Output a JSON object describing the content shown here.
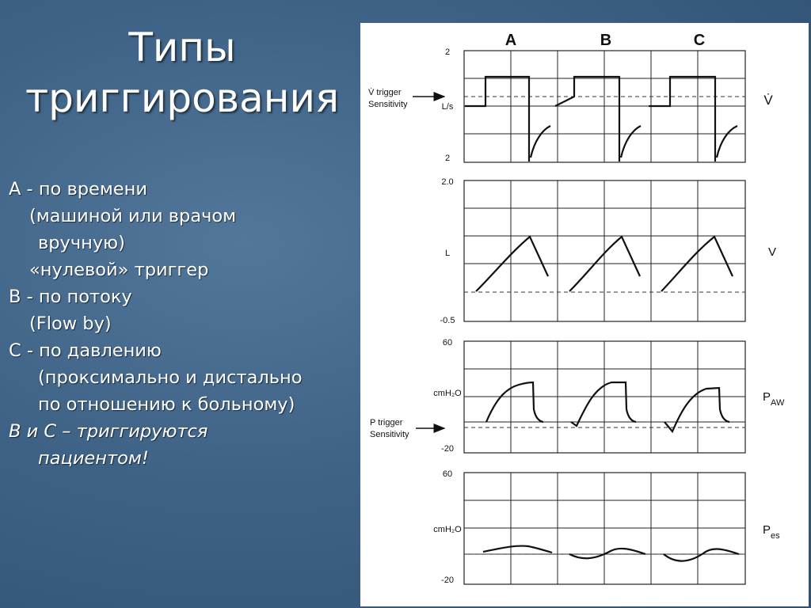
{
  "slide": {
    "title_line1": "Типы",
    "title_line2": "триггирования",
    "bullets": [
      {
        "text": "А - по времени",
        "indent": 0,
        "italic": false
      },
      {
        "text": "(машиной или врачом",
        "indent": 1,
        "italic": false
      },
      {
        "text": "вручную)",
        "indent": 2,
        "italic": false
      },
      {
        "text": "«нулевой» триггер",
        "indent": 1,
        "italic": false
      },
      {
        "text": "В - по потоку",
        "indent": 0,
        "italic": false
      },
      {
        "text": "(Flow by)",
        "indent": 1,
        "italic": false
      },
      {
        "text": "С - по давлению",
        "indent": 0,
        "italic": false
      },
      {
        "text": "(проксимально и дистально",
        "indent": 2,
        "italic": false
      },
      {
        "text": "по отношению к больному)",
        "indent": 2,
        "italic": false
      },
      {
        "text": "В и С – триггируются",
        "indent": 0,
        "italic": true
      },
      {
        "text": "пациентом!",
        "indent": 2,
        "italic": true
      }
    ]
  },
  "figure": {
    "column_labels": [
      "A",
      "B",
      "C"
    ],
    "panels": [
      {
        "id": "flow",
        "top_tick": "2",
        "mid_unit": "L/s",
        "bottom_tick": "2",
        "right_label": "V̇",
        "right_sub": "",
        "trigger_line1": "V̇ trigger",
        "trigger_line2": "Sensitivity"
      },
      {
        "id": "volume",
        "top_tick": "2.0",
        "mid_unit": "L",
        "bottom_tick": "-0.5",
        "right_label": "V",
        "right_sub": "",
        "trigger_line1": "",
        "trigger_line2": ""
      },
      {
        "id": "paw",
        "top_tick": "60",
        "mid_unit": "cmH₂O",
        "bottom_tick": "-20",
        "right_label": "P",
        "right_sub": "AW",
        "trigger_line1": "P trigger",
        "trigger_line2": "Sensitivity"
      },
      {
        "id": "pes",
        "top_tick": "60",
        "mid_unit": "cmH₂O",
        "bottom_tick": "-20",
        "right_label": "P",
        "right_sub": "es",
        "trigger_line1": "",
        "trigger_line2": ""
      }
    ]
  }
}
